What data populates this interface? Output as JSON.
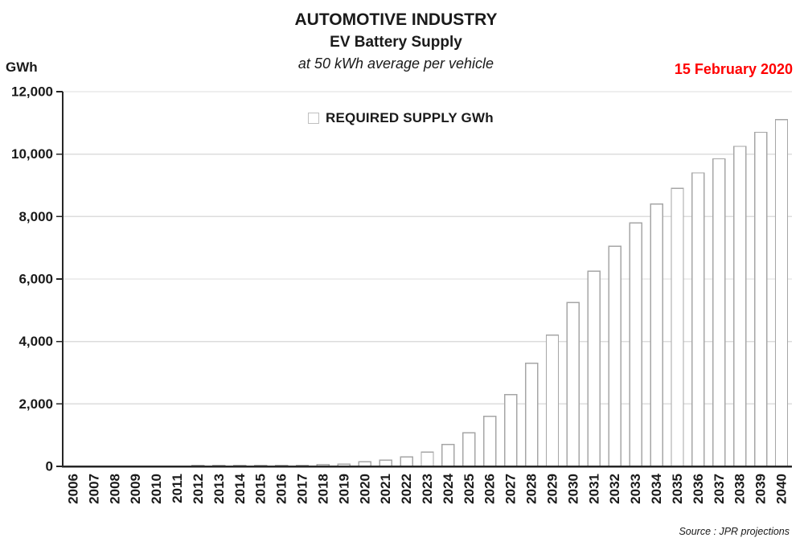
{
  "header": {
    "title": "AUTOMOTIVE INDUSTRY",
    "subtitle": "EV Battery Supply",
    "note": "at 50 kWh average per vehicle",
    "date": "15 February 2020"
  },
  "axis_unit_label": "GWh",
  "legend": {
    "label": "REQUIRED SUPPLY GWh"
  },
  "source": "Source : JPR projections",
  "colors": {
    "bar_fill": "#FFFFFF",
    "bar_border": "#A6A6A6",
    "gridline": "#DCDCDC",
    "axis": "#262626",
    "text": "#1A1A1A",
    "date_red": "#FF0000"
  },
  "chart_data": {
    "type": "bar",
    "title": "AUTOMOTIVE INDUSTRY — EV Battery Supply at 50 kWh average per vehicle",
    "xlabel": "",
    "ylabel": "GWh",
    "ylim": [
      0,
      12000
    ],
    "ytick_interval": 2000,
    "ytick_labels": [
      "0",
      "2,000",
      "4,000",
      "6,000",
      "8,000",
      "10,000",
      "12,000"
    ],
    "grid": true,
    "legend_position": "top-center",
    "series_name": "REQUIRED SUPPLY GWh",
    "categories": [
      2006,
      2007,
      2008,
      2009,
      2010,
      2011,
      2012,
      2013,
      2014,
      2015,
      2016,
      2017,
      2018,
      2019,
      2020,
      2021,
      2022,
      2023,
      2024,
      2025,
      2026,
      2027,
      2028,
      2029,
      2030,
      2031,
      2032,
      2033,
      2034,
      2035,
      2036,
      2037,
      2038,
      2039,
      2040
    ],
    "values": [
      0,
      0,
      0,
      0,
      0,
      0,
      10,
      15,
      15,
      20,
      20,
      25,
      55,
      75,
      150,
      200,
      300,
      460,
      700,
      1080,
      1600,
      2300,
      3300,
      4200,
      5250,
      6250,
      7050,
      7800,
      8400,
      8900,
      9400,
      9850,
      10250,
      10700,
      11100
    ]
  }
}
